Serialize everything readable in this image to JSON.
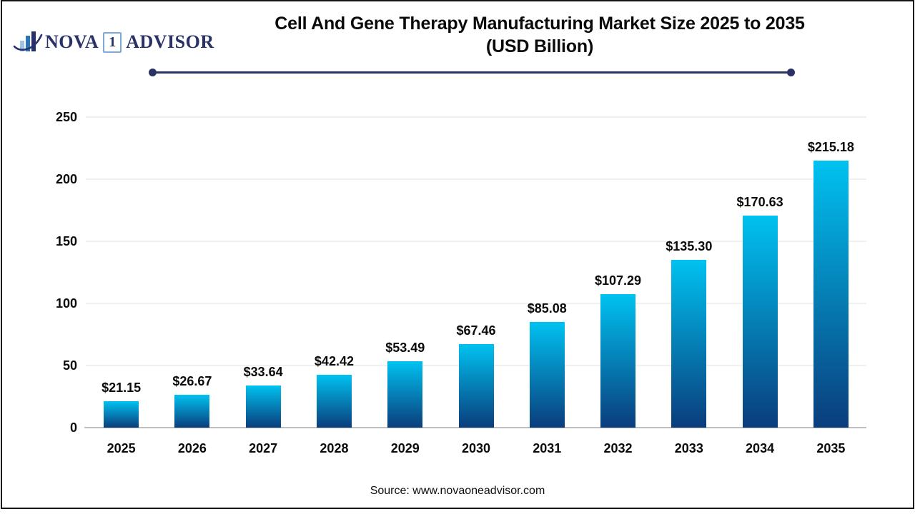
{
  "page": {
    "background": "#ffffff",
    "frame_color": "#141414"
  },
  "logo": {
    "word_primary": "NOVA",
    "word_number": "1",
    "word_secondary": "ADVISOR",
    "text_color": "#283168",
    "number_box_border": "#7fa8d9",
    "icon_bar_colors": [
      "#9dc3e6",
      "#2e75b6",
      "#27316b"
    ],
    "icon_swoosh_color": "#27316b"
  },
  "header": {
    "title_line1": "Cell And Gene Therapy Manufacturing Market Size 2025 to 2035",
    "title_line2": "(USD Billion)",
    "rule_color": "#2b3263"
  },
  "chart_data": {
    "type": "bar",
    "title": "Cell And Gene Therapy Manufacturing Market Size 2025 to 2035 (USD Billion)",
    "categories": [
      "2025",
      "2026",
      "2027",
      "2028",
      "2029",
      "2030",
      "2031",
      "2032",
      "2033",
      "2034",
      "2035"
    ],
    "values": [
      21.15,
      26.67,
      33.64,
      42.42,
      53.49,
      67.46,
      85.08,
      107.29,
      135.3,
      170.63,
      215.18
    ],
    "value_labels": [
      "$21.15",
      "$26.67",
      "$33.64",
      "$42.42",
      "$53.49",
      "$67.46",
      "$85.08",
      "$107.29",
      "$135.30",
      "$170.63",
      "$215.18"
    ],
    "xlabel": "",
    "ylabel": "",
    "ylim": [
      0,
      250
    ],
    "yticks": [
      0,
      50,
      100,
      150,
      200,
      250
    ],
    "grid": true,
    "legend": "none",
    "bar_gradient_top": "#00c2f0",
    "bar_gradient_bottom": "#0a3d7c",
    "gridline_color": "#f0f0f1",
    "axis_line_color": "#bfbfbf"
  },
  "footer": {
    "source": "Source: www.novaoneadvisor.com"
  }
}
